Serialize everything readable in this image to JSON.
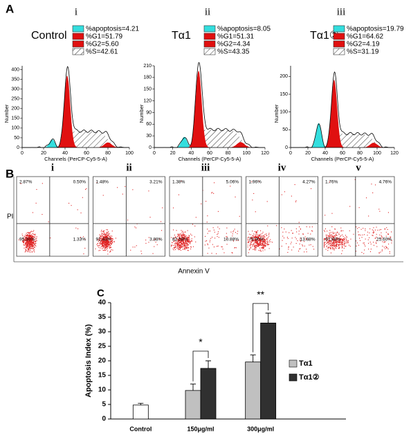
{
  "figure_labels": [
    "A",
    "B",
    "C"
  ],
  "chart_data": [
    {
      "type": "flow-histogram",
      "panel": "i",
      "title": "Control",
      "xlabel": "Channels (PerCP-Cy5-5-A)",
      "ylabel": "Number",
      "legend": [
        {
          "label": "%apoptosis=4.21",
          "color": "#33dede"
        },
        {
          "label": "%G1=51.79",
          "color": "#e01010"
        },
        {
          "label": "%G2=5.60",
          "color": "#e01010"
        },
        {
          "label": "%S=42.61",
          "color": "hatch"
        }
      ],
      "xlim": [
        0,
        100
      ],
      "xticks": [
        0,
        20,
        40,
        60,
        80,
        100
      ],
      "ylim": [
        0,
        420
      ],
      "yticks": [
        0,
        50,
        100,
        150,
        200,
        250,
        300,
        350,
        400
      ]
    },
    {
      "type": "flow-histogram",
      "panel": "ii",
      "title": "Tα1",
      "xlabel": "Channels (PerCP-Cy5-5-A)",
      "ylabel": "Number",
      "legend": [
        {
          "label": "%apoptosis=8.05",
          "color": "#33dede"
        },
        {
          "label": "%G1=51.31",
          "color": "#e01010"
        },
        {
          "label": "%G2=4.34",
          "color": "#e01010"
        },
        {
          "label": "%S=43.35",
          "color": "hatch"
        }
      ],
      "xlim": [
        0,
        120
      ],
      "xticks": [
        0,
        20,
        40,
        60,
        80,
        100,
        120
      ],
      "ylim": [
        0,
        210
      ],
      "yticks": [
        0,
        30,
        60,
        90,
        120,
        150,
        180,
        210
      ]
    },
    {
      "type": "flow-histogram",
      "panel": "iii",
      "title": "Tα1②",
      "xlabel": "Channels (PerCP-Cy5-5-A)",
      "ylabel": "Number",
      "legend": [
        {
          "label": "%apoptosis=19.79",
          "color": "#33dede"
        },
        {
          "label": "%G1=64.62",
          "color": "#e01010"
        },
        {
          "label": "%G2=4.19",
          "color": "#e01010"
        },
        {
          "label": "%S=31.19",
          "color": "hatch"
        }
      ],
      "xlim": [
        0,
        120
      ],
      "xticks": [
        0,
        20,
        40,
        60,
        80,
        100,
        120
      ],
      "ylim": [
        0,
        230
      ],
      "yticks": [
        0,
        50,
        100,
        150,
        200
      ]
    },
    {
      "type": "flow-scatter",
      "panel": "i",
      "xlabel": "Annexin V",
      "ylabel": "PI",
      "values": [
        2.87,
        0.5,
        95.3,
        1.33
      ],
      "value_labels": [
        "2.87%",
        "0.50%",
        "95.30%",
        "1.33%"
      ]
    },
    {
      "type": "flow-scatter",
      "panel": "ii",
      "values": [
        1.48,
        3.21,
        91.43,
        3.88
      ],
      "value_labels": [
        "1.48%",
        "3.21%",
        "91.43%",
        "3.88%"
      ]
    },
    {
      "type": "flow-scatter",
      "panel": "iii",
      "values": [
        1.38,
        5.06,
        82.68,
        10.88
      ],
      "value_labels": [
        "1.38%",
        "5.06%",
        "82.68%",
        "10.88%"
      ]
    },
    {
      "type": "flow-scatter",
      "panel": "iv",
      "values": [
        1.96,
        4.27,
        79.9,
        13.88
      ],
      "value_labels": [
        "1.96%",
        "4.27%",
        "79.90%",
        "13.88%"
      ]
    },
    {
      "type": "flow-scatter",
      "panel": "v",
      "values": [
        1.76,
        4.76,
        67.88,
        25.6
      ],
      "value_labels": [
        "1.76%",
        "4.76%",
        "67.88%",
        "25.60%"
      ]
    },
    {
      "type": "bar",
      "ylabel": "Apoptosis Index (%)",
      "categories": [
        "Control",
        "150μg/ml",
        "300μg/ml"
      ],
      "series": [
        {
          "color": "#ffffff",
          "values": [
            4.8,
            null,
            null
          ],
          "errors": [
            0.6,
            null,
            null
          ]
        },
        {
          "name": "Tα1",
          "color": "#c0c0c0",
          "values": [
            null,
            9.8,
            19.6
          ],
          "errors": [
            null,
            2.2,
            2.4
          ]
        },
        {
          "name": "Tα1②",
          "color": "#303030",
          "values": [
            null,
            17.4,
            33
          ],
          "errors": [
            null,
            2.6,
            3.4
          ]
        }
      ],
      "annotations": [
        "*",
        "**"
      ],
      "ylim": [
        0,
        40
      ],
      "yticks": [
        0,
        5,
        10,
        15,
        20,
        25,
        30,
        35,
        40
      ]
    }
  ]
}
